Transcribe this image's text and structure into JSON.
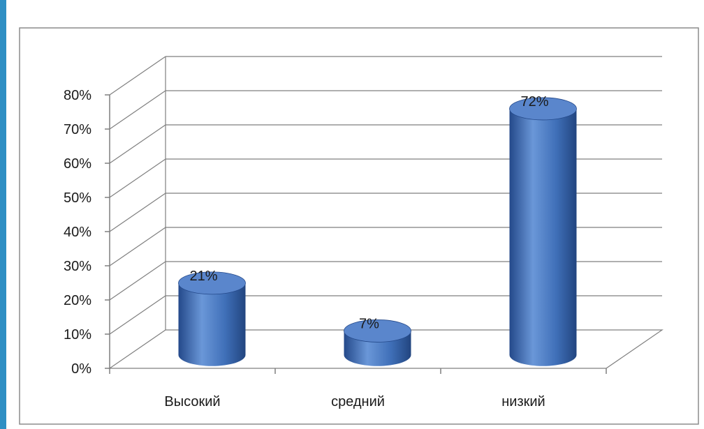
{
  "chart_data": {
    "type": "bar",
    "variant": "3d-cylinder",
    "title": "",
    "xlabel": "",
    "ylabel": "",
    "categories": [
      "Высокий",
      "средний",
      "низкий"
    ],
    "values": [
      21,
      7,
      72
    ],
    "data_labels": [
      "21%",
      "7%",
      "72%"
    ],
    "ylim": [
      0,
      80
    ],
    "y_ticks": [
      0,
      10,
      20,
      30,
      40,
      50,
      60,
      70,
      80
    ],
    "y_tick_labels": [
      "0%",
      "10%",
      "20%",
      "30%",
      "40%",
      "50%",
      "60%",
      "70%",
      "80%"
    ],
    "grid": true,
    "legend": "none",
    "colors": {
      "bar": "#3f6fb8",
      "bar_light": "#6a97d8",
      "bar_dark": "#24498a",
      "bar_top": "#5a86cc",
      "grid": "#7f7f7f",
      "frame": "#8c8c8c",
      "accent": "#2f8fc4"
    }
  }
}
